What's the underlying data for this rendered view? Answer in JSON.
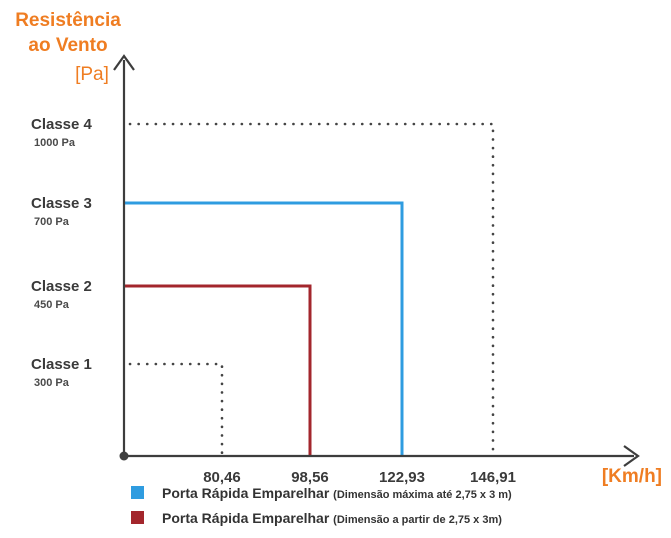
{
  "chart_data": {
    "type": "line",
    "y_title_line1": "Resistência",
    "y_title_line2": "ao Vento",
    "y_unit": "[Pa]",
    "x_unit": "[Km/h]",
    "y_classes": [
      {
        "name": "Classe 1",
        "pa_label": "300 Pa",
        "pa": 300
      },
      {
        "name": "Classe 2",
        "pa_label": "450 Pa",
        "pa": 450
      },
      {
        "name": "Classe 3",
        "pa_label": "700 Pa",
        "pa": 700
      },
      {
        "name": "Classe 4",
        "pa_label": "1000 Pa",
        "pa": 1000
      }
    ],
    "x_ticks": [
      {
        "label": "80,46",
        "value": 80.46
      },
      {
        "label": "98,56",
        "value": 98.56
      },
      {
        "label": "122,93",
        "value": 122.93
      },
      {
        "label": "146,91",
        "value": 146.91
      }
    ],
    "reference_lines": [
      {
        "class_index": 0,
        "x_index": 0,
        "style": "dotted"
      },
      {
        "class_index": 3,
        "x_index": 3,
        "style": "dotted"
      }
    ],
    "series": [
      {
        "color": "#2f9ce0",
        "class_index": 2,
        "x_index": 2,
        "legend_main": "Porta Rápida Emparelhar",
        "legend_note": "(Dimensão máxima até 2,75 x 3 m)"
      },
      {
        "color": "#a3262c",
        "class_index": 1,
        "x_index": 1,
        "legend_main": "Porta Rápida Emparelhar",
        "legend_note": "(Dimensão a partir de 2,75 x 3m)"
      }
    ],
    "axis_color": "#3d3d3d",
    "accent_color": "#ef7d22"
  }
}
